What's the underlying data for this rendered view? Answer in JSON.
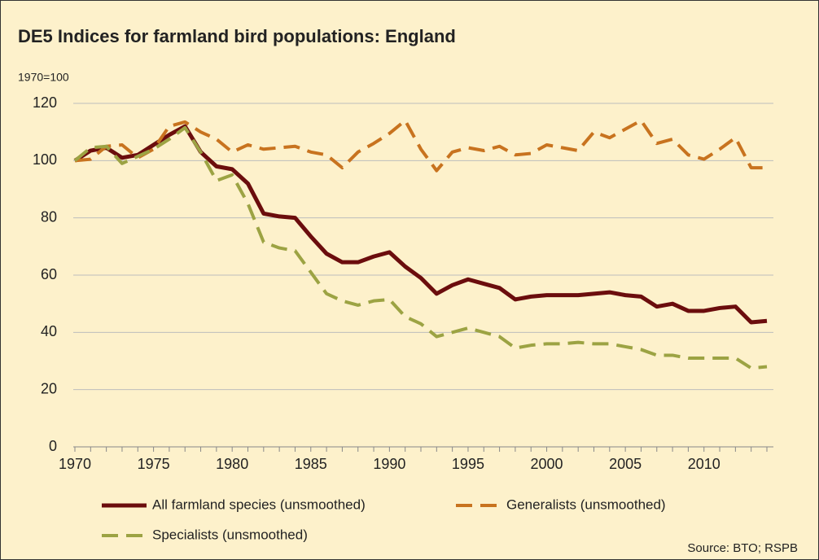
{
  "chart_data": {
    "type": "line",
    "title": "DE5 Indices for farmland bird populations: England",
    "y_label": "1970=100",
    "source": "Source: BTO; RSPB",
    "x": [
      1970,
      1971,
      1972,
      1973,
      1974,
      1975,
      1976,
      1977,
      1978,
      1979,
      1980,
      1981,
      1982,
      1983,
      1984,
      1985,
      1986,
      1987,
      1988,
      1989,
      1990,
      1991,
      1992,
      1993,
      1994,
      1995,
      1996,
      1997,
      1998,
      1999,
      2000,
      2001,
      2002,
      2003,
      2004,
      2005,
      2006,
      2007,
      2008,
      2009,
      2010,
      2011,
      2012,
      2013,
      2014
    ],
    "series": [
      {
        "name": "All farmland species (unsmoothed)",
        "color": "#6b0d0d",
        "dash": "solid",
        "values": [
          100,
          103.5,
          104.5,
          101,
          102,
          105.5,
          109,
          112,
          103,
          98,
          97,
          92,
          81.5,
          80.5,
          80,
          73.5,
          67.5,
          64.5,
          64.5,
          66.5,
          68,
          63,
          59,
          53.5,
          56.5,
          58.5,
          57,
          55.5,
          51.5,
          52.5,
          53,
          53,
          53,
          53.5,
          54,
          53,
          52.5,
          49,
          50,
          47.5,
          47.5,
          48.5,
          49,
          43.5,
          44
        ]
      },
      {
        "name": "Generalists (unsmoothed)",
        "color": "#c8731f",
        "dash": "dashed",
        "values": [
          100,
          100.5,
          105,
          105.5,
          101,
          104,
          112,
          113.5,
          110,
          107.5,
          103,
          105.5,
          104,
          104.5,
          105,
          103,
          102,
          97.5,
          103,
          106,
          109.5,
          114,
          104,
          96.5,
          103,
          104.5,
          103.5,
          105,
          102,
          102.5,
          105.5,
          104.5,
          103.5,
          110,
          108,
          111,
          114,
          106,
          107.5,
          102,
          100.5,
          104,
          108,
          97.5,
          97.5
        ]
      },
      {
        "name": "Specialists (unsmoothed)",
        "color": "#9ca343",
        "dash": "dashed",
        "values": [
          100,
          104.5,
          105,
          99,
          101.5,
          104,
          107.5,
          111.5,
          103,
          93,
          95,
          85,
          71.5,
          69.5,
          68.5,
          61,
          53.5,
          51,
          49.5,
          51,
          51.5,
          45.5,
          43,
          38.5,
          40,
          41.5,
          40,
          38.5,
          34.5,
          35.5,
          36,
          36,
          36.5,
          36,
          36,
          35,
          34,
          32,
          32,
          31,
          31,
          31,
          31,
          27.5,
          28
        ]
      }
    ],
    "xlim": [
      1970,
      2014
    ],
    "xticks": [
      1970,
      1975,
      1980,
      1985,
      1990,
      1995,
      2000,
      2005,
      2010
    ],
    "ylim": [
      0,
      120
    ],
    "yticks": [
      0,
      20,
      40,
      60,
      80,
      100,
      120
    ],
    "grid": true
  }
}
